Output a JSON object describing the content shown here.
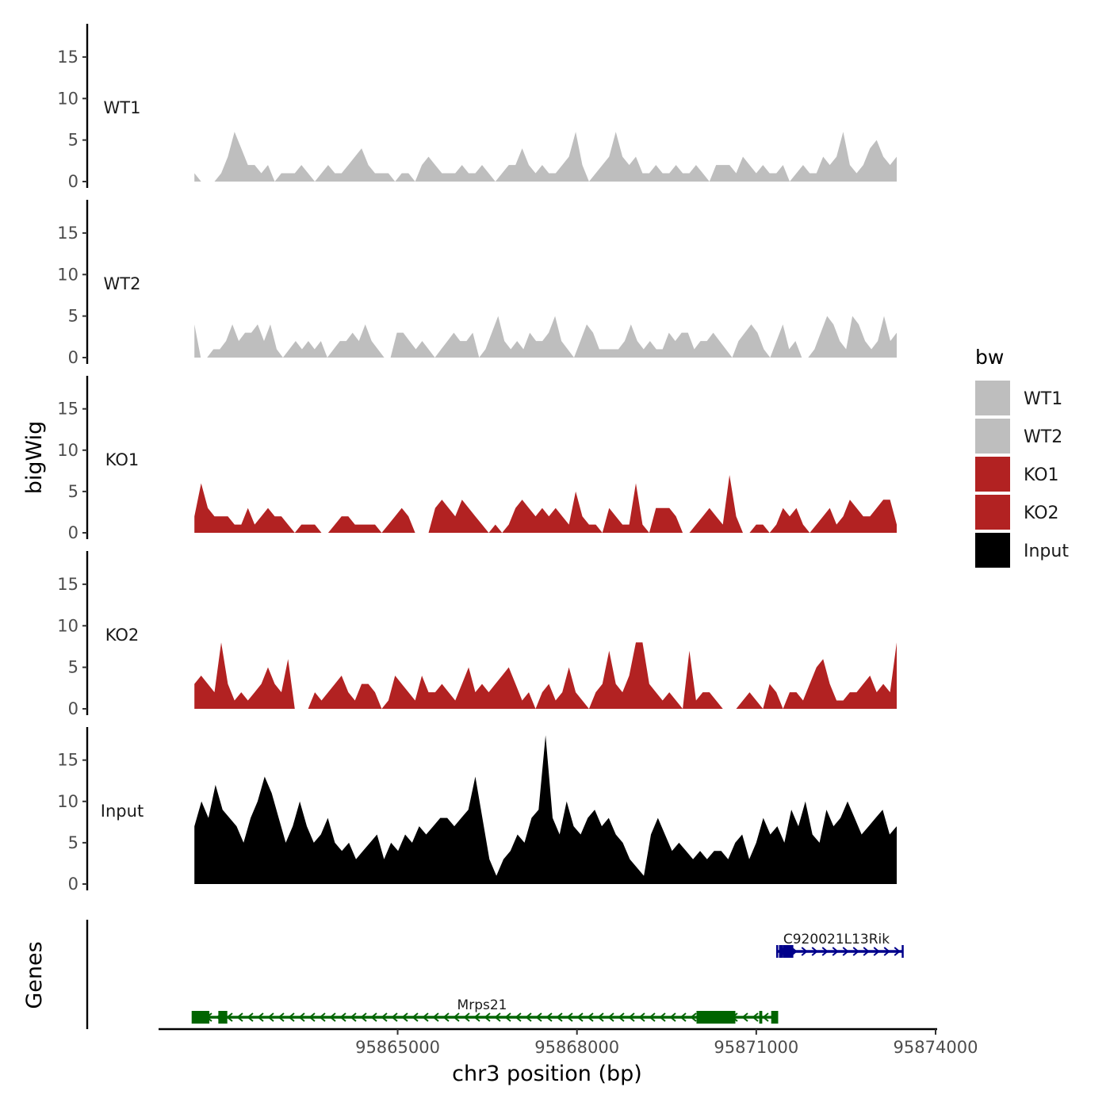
{
  "chart_data": {
    "type": "area",
    "title": "",
    "ylabel": "bigWig",
    "genes_label": "Genes",
    "xlabel": "chr3 position (bp)",
    "xlim": [
      95861000,
      95874000
    ],
    "ylim": [
      0,
      19
    ],
    "data_xrange": [
      95861600,
      95873350
    ],
    "x_ticks": [
      95865000,
      95868000,
      95871000,
      95874000
    ],
    "x_tick_labels": [
      "95865000",
      "95868000",
      "95871000",
      "95874000"
    ],
    "y_ticks": [
      0,
      5,
      10,
      15
    ],
    "y_tick_labels": [
      "0",
      "5",
      "10",
      "15"
    ],
    "legend": {
      "title": "bw",
      "position": "right",
      "entries": [
        {
          "label": "WT1",
          "color": "#bebebe"
        },
        {
          "label": "WT2",
          "color": "#bebebe"
        },
        {
          "label": "KO1",
          "color": "#b22222"
        },
        {
          "label": "KO2",
          "color": "#b22222"
        },
        {
          "label": "Input",
          "color": "#000000"
        }
      ]
    },
    "tracks": [
      {
        "name": "WT1",
        "label": "WT1",
        "color": "#bebebe",
        "values": [
          1,
          0,
          0,
          0,
          1,
          3,
          6,
          4,
          2,
          2,
          1,
          2,
          0,
          1,
          1,
          1,
          2,
          1,
          0,
          1,
          2,
          1,
          1,
          2,
          3,
          4,
          2,
          1,
          1,
          1,
          0,
          1,
          1,
          0,
          2,
          3,
          2,
          1,
          1,
          1,
          2,
          1,
          1,
          2,
          1,
          0,
          1,
          2,
          2,
          4,
          2,
          1,
          2,
          1,
          1,
          2,
          3,
          6,
          2,
          0,
          1,
          2,
          3,
          6,
          3,
          2,
          3,
          1,
          1,
          2,
          1,
          1,
          2,
          1,
          1,
          2,
          1,
          0,
          2,
          2,
          2,
          1,
          3,
          2,
          1,
          2,
          1,
          1,
          2,
          0,
          1,
          2,
          1,
          1,
          3,
          2,
          3,
          6,
          2,
          1,
          2,
          4,
          5,
          3,
          2,
          3
        ]
      },
      {
        "name": "WT2",
        "label": "WT2",
        "color": "#bebebe",
        "values": [
          4,
          0,
          0,
          1,
          1,
          2,
          4,
          2,
          3,
          3,
          4,
          2,
          4,
          1,
          0,
          1,
          2,
          1,
          2,
          1,
          2,
          0,
          1,
          2,
          2,
          3,
          2,
          4,
          2,
          1,
          0,
          0,
          3,
          3,
          2,
          1,
          2,
          1,
          0,
          1,
          2,
          3,
          2,
          2,
          3,
          0,
          1,
          3,
          5,
          2,
          1,
          2,
          1,
          3,
          2,
          2,
          3,
          5,
          2,
          1,
          0,
          2,
          4,
          3,
          1,
          1,
          1,
          1,
          2,
          4,
          2,
          1,
          2,
          1,
          1,
          3,
          2,
          3,
          3,
          1,
          2,
          2,
          3,
          2,
          1,
          0,
          2,
          3,
          4,
          3,
          1,
          0,
          2,
          4,
          1,
          2,
          0,
          0,
          1,
          3,
          5,
          4,
          2,
          1,
          5,
          4,
          2,
          1,
          2,
          5,
          2,
          3
        ]
      },
      {
        "name": "KO1",
        "label": "KO1",
        "color": "#b22222",
        "values": [
          2,
          6,
          3,
          2,
          2,
          2,
          1,
          1,
          3,
          1,
          2,
          3,
          2,
          2,
          1,
          0,
          1,
          1,
          1,
          0,
          0,
          1,
          2,
          2,
          1,
          1,
          1,
          1,
          0,
          1,
          2,
          3,
          2,
          0,
          0,
          0,
          3,
          4,
          3,
          2,
          4,
          3,
          2,
          1,
          0,
          1,
          0,
          1,
          3,
          4,
          3,
          2,
          3,
          2,
          3,
          2,
          1,
          5,
          2,
          1,
          1,
          0,
          3,
          2,
          1,
          1,
          6,
          1,
          0,
          3,
          3,
          3,
          2,
          0,
          0,
          1,
          2,
          3,
          2,
          1,
          7,
          2,
          0,
          0,
          1,
          1,
          0,
          1,
          3,
          2,
          3,
          1,
          0,
          1,
          2,
          3,
          1,
          2,
          4,
          3,
          2,
          2,
          3,
          4,
          4,
          1
        ]
      },
      {
        "name": "KO2",
        "label": "KO2",
        "color": "#b22222",
        "values": [
          3,
          4,
          3,
          2,
          8,
          3,
          1,
          2,
          1,
          2,
          3,
          5,
          3,
          2,
          6,
          0,
          0,
          0,
          2,
          1,
          2,
          3,
          4,
          2,
          1,
          3,
          3,
          2,
          0,
          1,
          4,
          3,
          2,
          1,
          4,
          2,
          2,
          3,
          2,
          1,
          3,
          5,
          2,
          3,
          2,
          3,
          4,
          5,
          3,
          1,
          2,
          0,
          2,
          3,
          1,
          2,
          5,
          2,
          1,
          0,
          2,
          3,
          7,
          3,
          2,
          4,
          8,
          8,
          3,
          2,
          1,
          2,
          1,
          0,
          7,
          1,
          2,
          2,
          1,
          0,
          0,
          0,
          1,
          2,
          1,
          0,
          3,
          2,
          0,
          2,
          2,
          1,
          3,
          5,
          6,
          3,
          1,
          1,
          2,
          2,
          3,
          4,
          2,
          3,
          2,
          8
        ]
      },
      {
        "name": "Input",
        "label": "Input",
        "color": "#000000",
        "values": [
          7,
          10,
          8,
          12,
          9,
          8,
          7,
          5,
          8,
          10,
          13,
          11,
          8,
          5,
          7,
          10,
          7,
          5,
          6,
          8,
          5,
          4,
          5,
          3,
          4,
          5,
          6,
          3,
          5,
          4,
          6,
          5,
          7,
          6,
          7,
          8,
          8,
          7,
          8,
          9,
          13,
          8,
          3,
          1,
          3,
          4,
          6,
          5,
          8,
          9,
          18,
          8,
          6,
          10,
          7,
          6,
          8,
          9,
          7,
          8,
          6,
          5,
          3,
          2,
          1,
          6,
          8,
          6,
          4,
          5,
          4,
          3,
          4,
          3,
          4,
          4,
          3,
          5,
          6,
          3,
          5,
          8,
          6,
          7,
          5,
          9,
          7,
          10,
          6,
          5,
          9,
          7,
          8,
          10,
          8,
          6,
          7,
          8,
          9,
          6,
          7
        ]
      }
    ],
    "genes": [
      {
        "name": "Mrps21",
        "strand": "-",
        "color": "#006400",
        "start": 95861570,
        "end": 95871350,
        "exons": [
          [
            95861570,
            95861850
          ],
          [
            95862000,
            95862150
          ],
          [
            95870000,
            95870650
          ],
          [
            95871050,
            95871100
          ],
          [
            95871250,
            95871350
          ]
        ]
      },
      {
        "name": "C920021L13Rik",
        "strand": "+",
        "color": "#00008b",
        "start": 95871350,
        "end": 95873450,
        "exons": [
          [
            95871380,
            95871450
          ],
          [
            95871450,
            95871620
          ]
        ]
      }
    ]
  }
}
